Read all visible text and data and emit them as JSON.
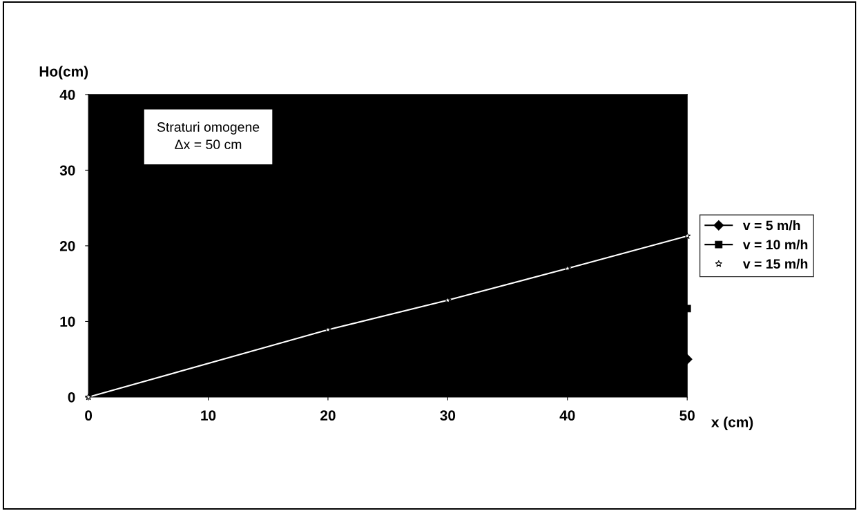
{
  "chart_data": {
    "type": "line",
    "xlabel": "x (cm)",
    "ylabel": "Ho(cm)",
    "annotations": [
      "Straturi omogene\nΔx = 50 cm"
    ],
    "xlim": [
      0,
      50
    ],
    "xticks": [
      0,
      10,
      20,
      30,
      40,
      50
    ],
    "ylim": [
      0,
      40
    ],
    "yticks": [
      0,
      10,
      20,
      30,
      40
    ],
    "grid": false,
    "legend": "right",
    "series": [
      {
        "name": "v = 5 m/h",
        "color": "#000000",
        "marker": "diamond",
        "x": [
          50
        ],
        "values": [
          5.0
        ]
      },
      {
        "name": "v = 10 m/h",
        "color": "#000000",
        "marker": "square",
        "x": [
          50
        ],
        "values": [
          11.7
        ]
      },
      {
        "name": "v = 15 m/h",
        "color": "#ffffff",
        "marker": "star",
        "x": [
          0,
          20,
          30,
          40,
          50
        ],
        "values": [
          0,
          8.9,
          12.8,
          17.0,
          21.3
        ]
      }
    ]
  }
}
